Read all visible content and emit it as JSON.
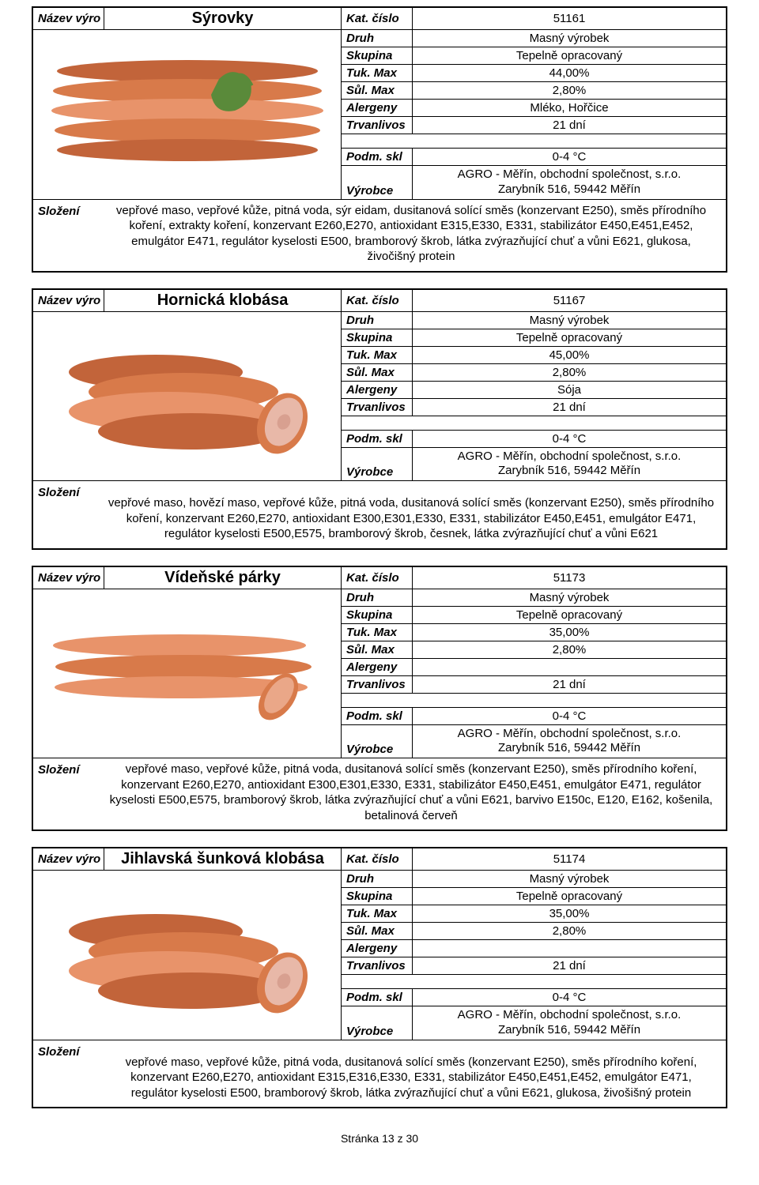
{
  "labels": {
    "nazev": "Název výro",
    "kat": "Kat. číslo",
    "druh": "Druh",
    "skupina": "Skupina",
    "tuk": "Tuk. Max",
    "sul": "Sůl. Max",
    "alergeny": "Alergeny",
    "trvanlivost": "Trvanlivos",
    "podm": "Podm. skl",
    "vyrobce": "Výrobce",
    "slozeni": "Složení"
  },
  "producer": {
    "line1": "AGRO - Měřín, obchodní společnost, s.r.o.",
    "line2": "Zarybník 516, 59442 Měřín"
  },
  "colors": {
    "sausage1": "#d87a4a",
    "sausage2": "#c2643a",
    "sausage3": "#e8936a",
    "garnish": "#5a8a3a"
  },
  "products": [
    {
      "name": "Sýrovky",
      "kat": "51161",
      "druh": "Masný výrobek",
      "skupina": "Tepelně opracovaný",
      "tuk": "44,00%",
      "sul": "2,80%",
      "alergeny": "Mléko, Hořčice",
      "trvanlivost": "21 dní",
      "podm": "0-4 °C",
      "slozeni": "vepřové maso, vepřové kůže, pitná voda, sýr eidam, dusitanová solící směs (konzervant E250), směs přírodního koření, extrakty koření, konzervant E260,E270, antioxidant E315,E330, E331, stabilizátor E450,E451,E452,  emulgátor E471, regulátor kyselosti E500, bramborový škrob, látka zvýrazňující chuť a vůni E621, glukosa, živočišný protein",
      "imgType": "long-garnish"
    },
    {
      "name": "Hornická klobása",
      "kat": "51167",
      "druh": "Masný výrobek",
      "skupina": "Tepelně opracovaný",
      "tuk": "45,00%",
      "sul": "2,80%",
      "alergeny": "Sója",
      "trvanlivost": "21 dní",
      "podm": "0-4 °C",
      "slozeni": "vepřové maso, hovězí maso, vepřové kůže, pitná voda, dusitanová solící směs (konzervant E250), směs přírodního koření, konzervant E260,E270, antioxidant E300,E301,E330, E331, stabilizátor E450,E451,  emulgátor E471, regulátor kyselosti E500,E575, bramborový škrob, česnek, látka zvýrazňující chuť a vůni E621",
      "imgType": "pile-cut",
      "extraGap": true
    },
    {
      "name": "Vídeňské párky",
      "kat": "51173",
      "druh": "Masný výrobek",
      "skupina": "Tepelně opracovaný",
      "tuk": "35,00%",
      "sul": "2,80%",
      "alergeny": "",
      "trvanlivost": "21 dní",
      "podm": "0-4 °C",
      "slozeni": "vepřové maso, vepřové kůže, pitná voda, dusitanová solící směs (konzervant E250), směs přírodního koření, konzervant E260,E270, antioxidant E300,E301,E330, E331, stabilizátor E450,E451,  emulgátor E471, regulátor kyselosti E500,E575, bramborový škrob, látka zvýrazňující chuť a vůni E621, barvivo E150c, E120, E162, košenila, betalinová červeň",
      "imgType": "flat-long"
    },
    {
      "name": "Jihlavská šunková klobása",
      "kat": "51174",
      "druh": "Masný výrobek",
      "skupina": "Tepelně opracovaný",
      "tuk": "35,00%",
      "sul": "2,80%",
      "alergeny": "",
      "trvanlivost": "21 dní",
      "podm": "0-4 °C",
      "slozeni": "vepřové maso, vepřové kůže, pitná voda, dusitanová solící směs (konzervant E250), směs přírodního koření, konzervant E260,E270, antioxidant E315,E316,E330, E331, stabilizátor E450,E451,E452,  emulgátor E471, regulátor kyselosti E500, bramborový škrob, látka zvýrazňující chuť a vůni E621, glukosa, živošišný protein",
      "imgType": "pile-cut",
      "extraGap": true
    }
  ],
  "footer": "Stránka 13 z 30"
}
